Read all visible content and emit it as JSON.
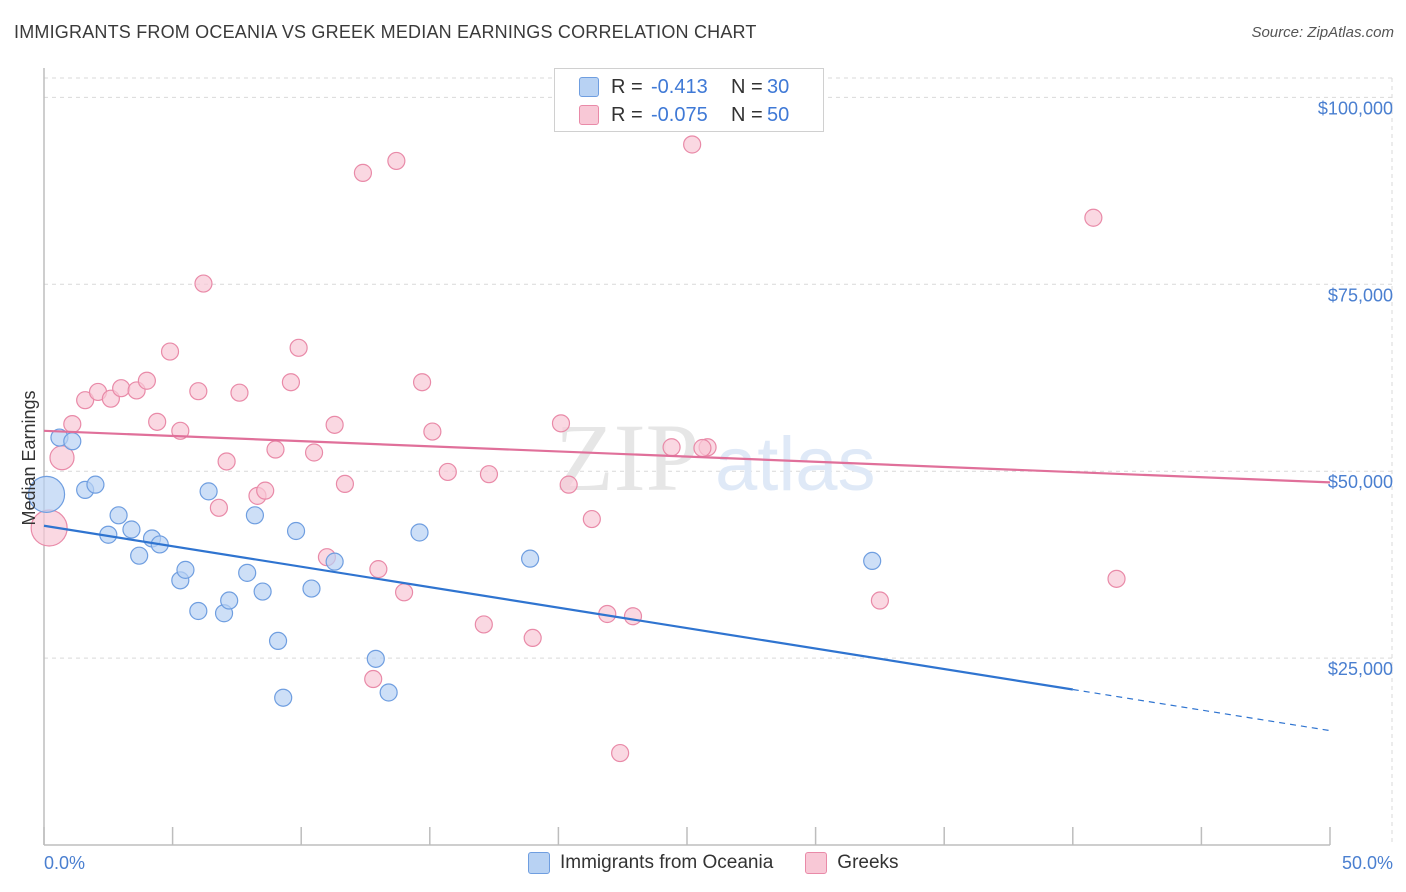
{
  "title": "IMMIGRANTS FROM OCEANIA VS GREEK MEDIAN EARNINGS CORRELATION CHART",
  "source": "Source: ZipAtlas.com",
  "watermark": {
    "zip": "ZIP",
    "atlas": "atlas"
  },
  "legend": {
    "rows": [
      {
        "r_label": "R =",
        "r_value": "-0.413",
        "n_label": "N =",
        "n_value": "30"
      },
      {
        "r_label": "R =",
        "r_value": "-0.075",
        "n_label": "N =",
        "n_value": "50"
      }
    ]
  },
  "bottom_legend": {
    "series1": "Immigrants from Oceania",
    "series2": "Greeks"
  },
  "colors": {
    "blue_fill": "#b8d2f3",
    "blue_stroke": "#6f9ee0",
    "blue_line": "#2f74d0",
    "pink_fill": "#f8c8d6",
    "pink_stroke": "#e98aa8",
    "pink_line": "#e0709a",
    "tick_text": "#4a7fd0",
    "grid": "#d9d9d9"
  },
  "chart_data": {
    "type": "scatter",
    "title": "IMMIGRANTS FROM OCEANIA VS GREEK MEDIAN EARNINGS CORRELATION CHART",
    "xlabel": "",
    "ylabel": "Median Earnings",
    "xlim": [
      0,
      50
    ],
    "ylim": [
      0,
      105000
    ],
    "x_tick_labels": [
      "0.0%",
      "50.0%"
    ],
    "y_ticks": [
      {
        "value": 25000,
        "label": "$25,000"
      },
      {
        "value": 50000,
        "label": "$50,000"
      },
      {
        "value": 75000,
        "label": "$75,000"
      },
      {
        "value": 100000,
        "label": "$100,000"
      }
    ],
    "series": [
      {
        "name": "Immigrants from Oceania",
        "color": "blue",
        "points": [
          [
            0.1,
            46900,
            "large"
          ],
          [
            0.6,
            54500
          ],
          [
            1.1,
            54000
          ],
          [
            1.6,
            47500
          ],
          [
            2.0,
            48200
          ],
          [
            2.5,
            41500
          ],
          [
            2.9,
            44100
          ],
          [
            3.4,
            42200
          ],
          [
            3.7,
            38700
          ],
          [
            4.2,
            41000
          ],
          [
            4.5,
            40200
          ],
          [
            5.3,
            35400
          ],
          [
            5.5,
            36800
          ],
          [
            6.0,
            31300
          ],
          [
            6.4,
            47300
          ],
          [
            7.0,
            31000
          ],
          [
            7.2,
            32700
          ],
          [
            7.9,
            36400
          ],
          [
            8.2,
            44100
          ],
          [
            8.5,
            33900
          ],
          [
            9.1,
            27300
          ],
          [
            9.3,
            19700
          ],
          [
            9.8,
            42000
          ],
          [
            10.4,
            34300
          ],
          [
            11.3,
            37900
          ],
          [
            12.9,
            24900
          ],
          [
            13.4,
            20400
          ],
          [
            14.6,
            41800
          ],
          [
            18.9,
            38300
          ],
          [
            32.2,
            38000
          ]
        ],
        "trend": {
          "x0": 0,
          "y0": 42700,
          "x1": 40,
          "y1": 20800,
          "dash_to_x": 50,
          "dash_to_y": 15300
        }
      },
      {
        "name": "Greeks",
        "color": "pink",
        "points": [
          [
            0.2,
            42400,
            "large"
          ],
          [
            0.7,
            51800,
            "medium"
          ],
          [
            1.1,
            56300
          ],
          [
            1.6,
            59500
          ],
          [
            2.1,
            60600
          ],
          [
            2.6,
            59700
          ],
          [
            3.0,
            61100
          ],
          [
            3.6,
            60800
          ],
          [
            4.0,
            62100
          ],
          [
            4.4,
            56600
          ],
          [
            4.9,
            66000
          ],
          [
            5.3,
            55400
          ],
          [
            6.0,
            60700
          ],
          [
            6.2,
            75100
          ],
          [
            6.8,
            45100
          ],
          [
            7.1,
            51300
          ],
          [
            7.6,
            60500
          ],
          [
            8.3,
            46700
          ],
          [
            8.6,
            47400
          ],
          [
            9.0,
            52900
          ],
          [
            9.6,
            61900
          ],
          [
            9.9,
            66500
          ],
          [
            10.5,
            52500
          ],
          [
            11.0,
            38500
          ],
          [
            11.3,
            56200
          ],
          [
            11.7,
            48300
          ],
          [
            12.4,
            89900
          ],
          [
            13.0,
            36900
          ],
          [
            13.7,
            91500
          ],
          [
            14.0,
            33800
          ],
          [
            14.7,
            61900
          ],
          [
            15.1,
            55300
          ],
          [
            15.7,
            49900
          ],
          [
            17.1,
            29500
          ],
          [
            17.3,
            49600
          ],
          [
            19.0,
            27700
          ],
          [
            20.1,
            56400
          ],
          [
            20.4,
            48200
          ],
          [
            21.3,
            43600
          ],
          [
            21.9,
            30900
          ],
          [
            22.4,
            12300
          ],
          [
            22.9,
            30600
          ],
          [
            25.2,
            93700
          ],
          [
            25.8,
            53200
          ],
          [
            25.6,
            53100
          ],
          [
            32.5,
            32700
          ],
          [
            40.8,
            83900
          ],
          [
            41.7,
            35600
          ],
          [
            12.8,
            22200
          ],
          [
            24.4,
            53200
          ]
        ],
        "trend": {
          "x0": 0,
          "y0": 55400,
          "x1": 50,
          "y1": 48500
        }
      }
    ]
  }
}
